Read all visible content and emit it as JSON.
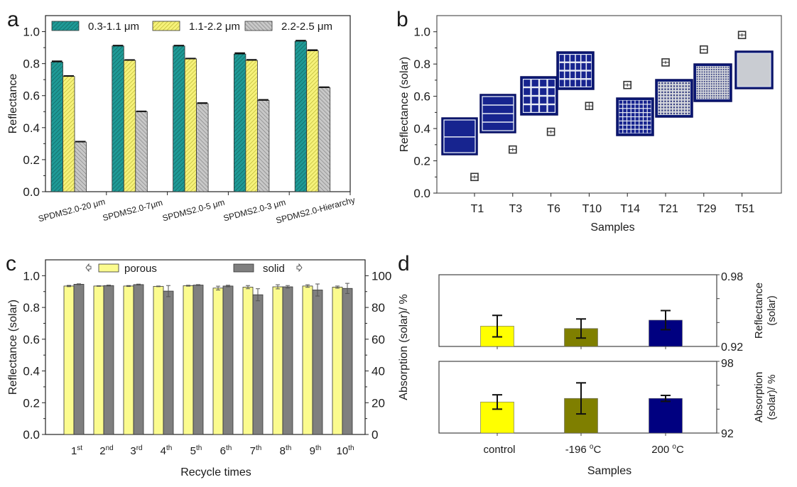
{
  "chart_data": [
    {
      "panel_label": "a",
      "type": "bar",
      "title": "",
      "xlabel": "",
      "ylabel": "Reflectance",
      "ylim": [
        0,
        1.1
      ],
      "yticks": [
        "0.0",
        "0.2",
        "0.4",
        "0.6",
        "0.8",
        "1.0"
      ],
      "categories": [
        "SPDMS2.0-20 μm",
        "SPDMS2.0-7μm",
        "SPDMS2.0-5 μm",
        "SPDMS2.0-3 μm",
        "SPDMS2.0-Hierarchy"
      ],
      "legend_position": "top",
      "series": [
        {
          "name": "0.3-1.1 μm",
          "color": "#1f9a96",
          "values": [
            0.81,
            0.91,
            0.91,
            0.86,
            0.94
          ],
          "errors": [
            0.005,
            0.003,
            0.003,
            0.006,
            0.004
          ]
        },
        {
          "name": "1.1-2.2 μm",
          "color": "#f3ee6c",
          "values": [
            0.72,
            0.82,
            0.83,
            0.82,
            0.88
          ],
          "errors": [
            0.003,
            0.003,
            0.002,
            0.004,
            0.005
          ]
        },
        {
          "name": "2.2-2.5 μm",
          "color": "#b9b9b9",
          "values": [
            0.31,
            0.5,
            0.55,
            0.57,
            0.65
          ],
          "errors": [
            0.003,
            0.002,
            0.004,
            0.004,
            0.003
          ]
        }
      ]
    },
    {
      "panel_label": "b",
      "type": "scatter",
      "title": "",
      "xlabel": "Samples",
      "ylabel": "Reflectance (solar)",
      "ylim": [
        0,
        1.1
      ],
      "yticks": [
        "0.0",
        "0.2",
        "0.4",
        "0.6",
        "0.8",
        "1.0"
      ],
      "categories": [
        "T1",
        "T3",
        "T6",
        "T10",
        "T14",
        "T21",
        "T29",
        "T51"
      ],
      "values": [
        0.1,
        0.27,
        0.38,
        0.54,
        0.67,
        0.81,
        0.89,
        0.98
      ],
      "errors": [
        0.01,
        0.01,
        0.01,
        0.02,
        0.01,
        0.01,
        0.005,
        0.01
      ],
      "inset_images": [
        "T1 sample photo",
        "T3 sample photo",
        "T6 sample photo",
        "T10 sample photo",
        "T14 sample photo",
        "T21 sample photo",
        "T29 sample photo",
        "T51 sample photo"
      ]
    },
    {
      "panel_label": "c",
      "type": "bar",
      "title": "",
      "xlabel": "Recycle times",
      "ylabel": "Reflectance (solar)",
      "ylabel_right": "Absorption (solar)/ %",
      "ylim": [
        0,
        1.1
      ],
      "ylim_right": [
        0,
        110
      ],
      "yticks": [
        "0.0",
        "0.2",
        "0.4",
        "0.6",
        "0.8",
        "1.0"
      ],
      "yticks_right": [
        "0",
        "20",
        "40",
        "60",
        "80",
        "100"
      ],
      "categories": [
        {
          "num": "1",
          "sup": "st"
        },
        {
          "num": "2",
          "sup": "nd"
        },
        {
          "num": "3",
          "sup": "rd"
        },
        {
          "num": "4",
          "sup": "th"
        },
        {
          "num": "5",
          "sup": "th"
        },
        {
          "num": "6",
          "sup": "th"
        },
        {
          "num": "7",
          "sup": "th"
        },
        {
          "num": "8",
          "sup": "th"
        },
        {
          "num": "9",
          "sup": "th"
        },
        {
          "num": "10",
          "sup": "th"
        }
      ],
      "legend_position": "top",
      "series": [
        {
          "name": "porous",
          "axis": "left",
          "color": "#fbfb8e",
          "values": [
            0.935,
            0.935,
            0.935,
            0.933,
            0.937,
            0.922,
            0.928,
            0.93,
            0.935,
            0.928
          ],
          "errors": [
            0.004,
            0.002,
            0.003,
            0.002,
            0.003,
            0.012,
            0.01,
            0.013,
            0.008,
            0.007
          ]
        },
        {
          "name": "solid",
          "axis": "right",
          "color": "#7f7f7f",
          "values": [
            94.6,
            93.8,
            94.4,
            90.3,
            94.1,
            93.5,
            88.0,
            93.0,
            91.0,
            92.0
          ],
          "errors": [
            0.3,
            0.3,
            0.3,
            3.5,
            0.3,
            0.5,
            3.8,
            0.8,
            3.8,
            3.2
          ]
        }
      ]
    },
    {
      "panel_label": "d",
      "type": "bar",
      "title": "",
      "xlabel": "Samples",
      "categories": [
        "control",
        "-196 °C",
        "200 °C"
      ],
      "category_parts": [
        {
          "pre": "control",
          "sup": "",
          "post": ""
        },
        {
          "pre": "-196 ",
          "sup": "o",
          "post": "C"
        },
        {
          "pre": "200 ",
          "sup": "o",
          "post": "C"
        }
      ],
      "colors": [
        "#ffff00",
        "#7f7f00",
        "#000080"
      ],
      "subplots": [
        {
          "ylabel": [
            "Reflectance",
            "(solar)"
          ],
          "ylim": [
            0.92,
            0.98
          ],
          "yticks": [
            "0.92",
            "0.98"
          ],
          "values": [
            0.937,
            0.935,
            0.942
          ],
          "errors": [
            0.009,
            0.008,
            0.008
          ]
        },
        {
          "ylabel": [
            "Absorption",
            "(solar)/ %"
          ],
          "ylim": [
            92,
            98
          ],
          "yticks": [
            "92",
            "98"
          ],
          "values": [
            94.6,
            94.9,
            94.9
          ],
          "errors": [
            0.6,
            1.3,
            0.25
          ]
        }
      ]
    }
  ]
}
